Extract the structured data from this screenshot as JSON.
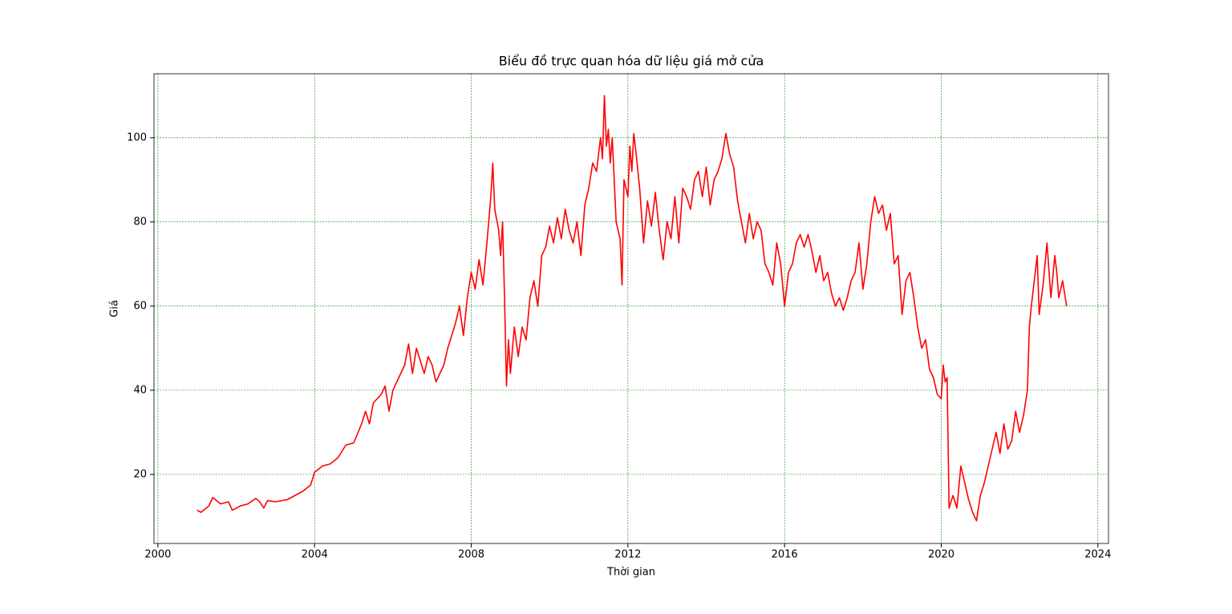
{
  "chart_data": {
    "type": "line",
    "title": "Biểu đồ trực quan hóa dữ liệu giá mở cửa",
    "xlabel": "Thời gian",
    "ylabel": "Giá",
    "x": [
      2001.0,
      2001.1,
      2001.3,
      2001.4,
      2001.6,
      2001.8,
      2001.9,
      2002.1,
      2002.3,
      2002.5,
      2002.6,
      2002.7,
      2002.8,
      2003.0,
      2003.3,
      2003.5,
      2003.7,
      2003.9,
      2004.0,
      2004.2,
      2004.4,
      2004.6,
      2004.8,
      2005.0,
      2005.2,
      2005.3,
      2005.4,
      2005.5,
      2005.7,
      2005.8,
      2005.9,
      2006.0,
      2006.2,
      2006.3,
      2006.4,
      2006.5,
      2006.6,
      2006.7,
      2006.8,
      2006.9,
      2007.0,
      2007.1,
      2007.3,
      2007.4,
      2007.6,
      2007.7,
      2007.8,
      2007.9,
      2008.0,
      2008.1,
      2008.2,
      2008.3,
      2008.4,
      2008.5,
      2008.55,
      2008.6,
      2008.7,
      2008.75,
      2008.8,
      2008.85,
      2008.9,
      2008.95,
      2009.0,
      2009.1,
      2009.2,
      2009.3,
      2009.4,
      2009.5,
      2009.6,
      2009.7,
      2009.8,
      2009.9,
      2010.0,
      2010.1,
      2010.2,
      2010.3,
      2010.4,
      2010.5,
      2010.6,
      2010.7,
      2010.8,
      2010.9,
      2011.0,
      2011.1,
      2011.2,
      2011.3,
      2011.35,
      2011.4,
      2011.45,
      2011.5,
      2011.55,
      2011.6,
      2011.7,
      2011.8,
      2011.85,
      2011.9,
      2012.0,
      2012.05,
      2012.1,
      2012.15,
      2012.2,
      2012.3,
      2012.4,
      2012.5,
      2012.6,
      2012.7,
      2012.8,
      2012.9,
      2013.0,
      2013.1,
      2013.2,
      2013.3,
      2013.4,
      2013.5,
      2013.6,
      2013.7,
      2013.8,
      2013.9,
      2014.0,
      2014.1,
      2014.2,
      2014.3,
      2014.4,
      2014.5,
      2014.6,
      2014.7,
      2014.8,
      2014.9,
      2015.0,
      2015.1,
      2015.2,
      2015.3,
      2015.4,
      2015.5,
      2015.6,
      2015.7,
      2015.8,
      2015.9,
      2016.0,
      2016.1,
      2016.2,
      2016.3,
      2016.4,
      2016.5,
      2016.6,
      2016.7,
      2016.8,
      2016.9,
      2017.0,
      2017.1,
      2017.2,
      2017.3,
      2017.4,
      2017.5,
      2017.6,
      2017.7,
      2017.8,
      2017.9,
      2018.0,
      2018.1,
      2018.2,
      2018.3,
      2018.4,
      2018.5,
      2018.6,
      2018.7,
      2018.8,
      2018.9,
      2019.0,
      2019.1,
      2019.2,
      2019.3,
      2019.4,
      2019.5,
      2019.6,
      2019.7,
      2019.8,
      2019.9,
      2020.0,
      2020.05,
      2020.1,
      2020.15,
      2020.2,
      2020.3,
      2020.4,
      2020.5,
      2020.6,
      2020.7,
      2020.8,
      2020.9,
      2021.0,
      2021.1,
      2021.2,
      2021.3,
      2021.4,
      2021.5,
      2021.6,
      2021.7,
      2021.8,
      2021.9,
      2022.0,
      2022.1,
      2022.2,
      2022.25,
      2022.3,
      2022.4,
      2022.45,
      2022.5,
      2022.6,
      2022.7,
      2022.8,
      2022.9,
      2022.95,
      2023.0,
      2023.1,
      2023.2
    ],
    "values": [
      11.5,
      11,
      12.5,
      14.5,
      13,
      13.5,
      11.5,
      12.5,
      13,
      14.3,
      13.5,
      12,
      13.8,
      13.5,
      14,
      15,
      16,
      17.5,
      20.5,
      22,
      22.5,
      24,
      27,
      27.5,
      32,
      35,
      32,
      37,
      39,
      41,
      35,
      40,
      44,
      46,
      51,
      44,
      50,
      47,
      44,
      48,
      46,
      42,
      46,
      50,
      56,
      60,
      53,
      62,
      68,
      64,
      71,
      65,
      75,
      86,
      94,
      83,
      78,
      72,
      80,
      62,
      41,
      52,
      44,
      55,
      48,
      55,
      52,
      62,
      66,
      60,
      72,
      74,
      79,
      75,
      81,
      76,
      83,
      78,
      75,
      80,
      72,
      84,
      88,
      94,
      92,
      100,
      95,
      110,
      98,
      102,
      94,
      100,
      80,
      76,
      65,
      90,
      86,
      98,
      92,
      101,
      97,
      88,
      75,
      85,
      79,
      87,
      78,
      71,
      80,
      76,
      86,
      75,
      88,
      86,
      83,
      90,
      92,
      86,
      93,
      84,
      90,
      92,
      95,
      101,
      96,
      93,
      85,
      80,
      75,
      82,
      76,
      80,
      78,
      70,
      68,
      65,
      75,
      70,
      60,
      68,
      70,
      75,
      77,
      74,
      77,
      73,
      68,
      72,
      66,
      68,
      63,
      60,
      62,
      59,
      62,
      66,
      68,
      75,
      64,
      70,
      80,
      86,
      82,
      84,
      78,
      82,
      70,
      72,
      58,
      66,
      68,
      62,
      55,
      50,
      52,
      45,
      43,
      39,
      38,
      46,
      42,
      43,
      12,
      15,
      12,
      22,
      18,
      14,
      11,
      9,
      15,
      18,
      22,
      26,
      30,
      25,
      32,
      26,
      28,
      35,
      30,
      34,
      40,
      55,
      60,
      68,
      72,
      58,
      65,
      75,
      62,
      72,
      68,
      62,
      66,
      60
    ],
    "color": "#ff0000",
    "xlim": [
      1999.9,
      2024.27
    ],
    "xticks": [
      2000,
      2004,
      2008,
      2012,
      2016,
      2020,
      2024
    ],
    "ylim": [
      3.6,
      115.2
    ],
    "yticks": [
      20,
      40,
      60,
      80,
      100
    ],
    "grid": true,
    "grid_color": "#008000"
  }
}
